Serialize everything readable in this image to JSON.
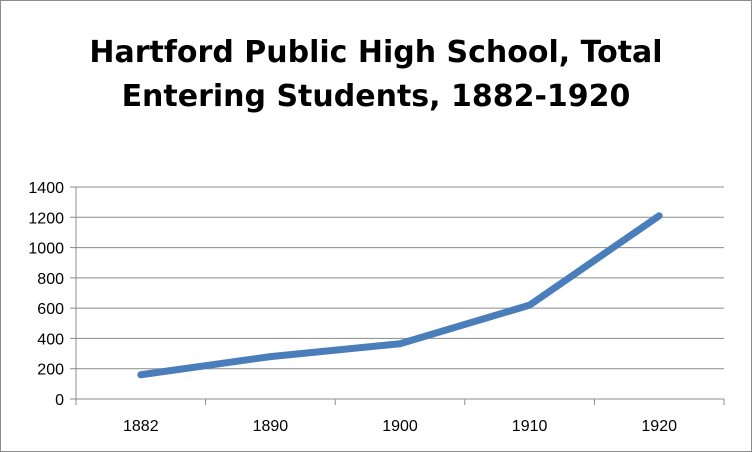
{
  "chart_data": {
    "type": "line",
    "title": "Hartford Public High School, Total Entering Students, 1882-1920",
    "title_lines": [
      "Hartford Public High School, Total",
      "Entering Students, 1882-1920"
    ],
    "categories": [
      "1882",
      "1890",
      "1900",
      "1910",
      "1920"
    ],
    "series": [
      {
        "values": [
          160,
          280,
          365,
          620,
          1210
        ],
        "color": "#4a7ebb"
      }
    ],
    "ylim": [
      0,
      1400
    ],
    "yticks": [
      0,
      200,
      400,
      600,
      800,
      1000,
      1200,
      1400
    ],
    "grid": true,
    "legend": "none",
    "xlabel": "",
    "ylabel": ""
  }
}
